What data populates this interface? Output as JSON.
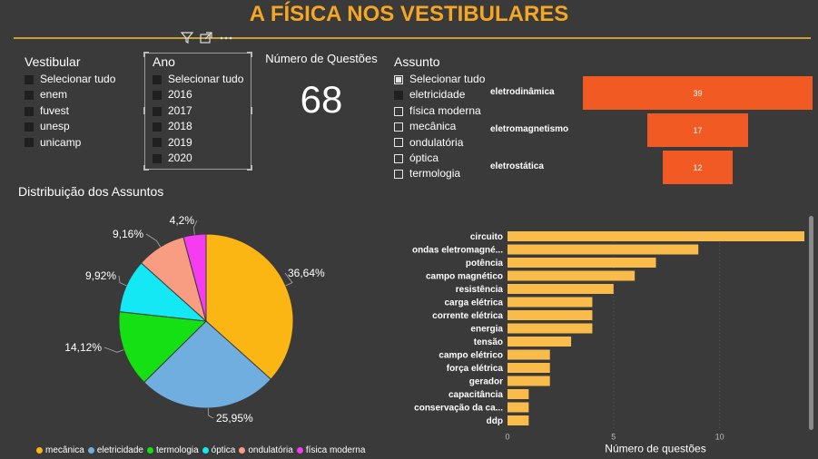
{
  "title": "A FÍSICA NOS VESTIBULARES",
  "toolbar": {
    "filter_icon": "filter-icon",
    "focus_icon": "focus-mode-icon",
    "more_icon": "more-options-icon"
  },
  "vestibular": {
    "title": "Vestibular",
    "items": [
      "Selecionar tudo",
      "enem",
      "fuvest",
      "unesp",
      "unicamp"
    ]
  },
  "ano": {
    "title": "Ano",
    "items": [
      "Selecionar tudo",
      "2016",
      "2017",
      "2018",
      "2019",
      "2020"
    ]
  },
  "kpi": {
    "label": "Número de Questões",
    "value": "68"
  },
  "assunto": {
    "title": "Assunto",
    "items": [
      "Selecionar tudo",
      "eletricidade",
      "física moderna",
      "mecânica",
      "ondulatória",
      "óptica",
      "termologia"
    ]
  },
  "colors": {
    "accent": "#f5a623",
    "funnel": "#f25a24",
    "bar": "#f9bc4b",
    "pie": [
      "#fbb614",
      "#70aee0",
      "#14e014",
      "#14e8f4",
      "#f99d82",
      "#f53cf0"
    ]
  },
  "chart_data": [
    {
      "type": "bar",
      "orientation": "funnel",
      "categories": [
        "eletrodinâmica",
        "eletromagnetismo",
        "eletrostática"
      ],
      "values": [
        39,
        17,
        12
      ]
    },
    {
      "type": "pie",
      "title": "Distribuição dos Assuntos",
      "categories": [
        "mecânica",
        "eletricidade",
        "termologia",
        "óptica",
        "ondulatória",
        "física moderna"
      ],
      "values": [
        36.64,
        25.95,
        14.12,
        9.92,
        9.16,
        4.2
      ],
      "labels": [
        "36,64%",
        "25,95%",
        "14,12%",
        "9,92%",
        "9,16%",
        "4,2%"
      ],
      "legend": "bottom"
    },
    {
      "type": "bar",
      "orientation": "horizontal",
      "categories": [
        "circuito",
        "ondas eletromagné...",
        "potência",
        "campo magnético",
        "resistência",
        "carga elétrica",
        "corrente elétrica",
        "energia",
        "tensão",
        "campo elétrico",
        "força elétrica",
        "gerador",
        "capacitância",
        "conservação da ca...",
        "ddp"
      ],
      "values": [
        14,
        9,
        7,
        6,
        5,
        4,
        4,
        4,
        3,
        2,
        2,
        2,
        1,
        1,
        1
      ],
      "xlabel": "Número de questões",
      "xlim": [
        0,
        14
      ],
      "xticks": [
        "0",
        "5",
        "10"
      ]
    }
  ]
}
